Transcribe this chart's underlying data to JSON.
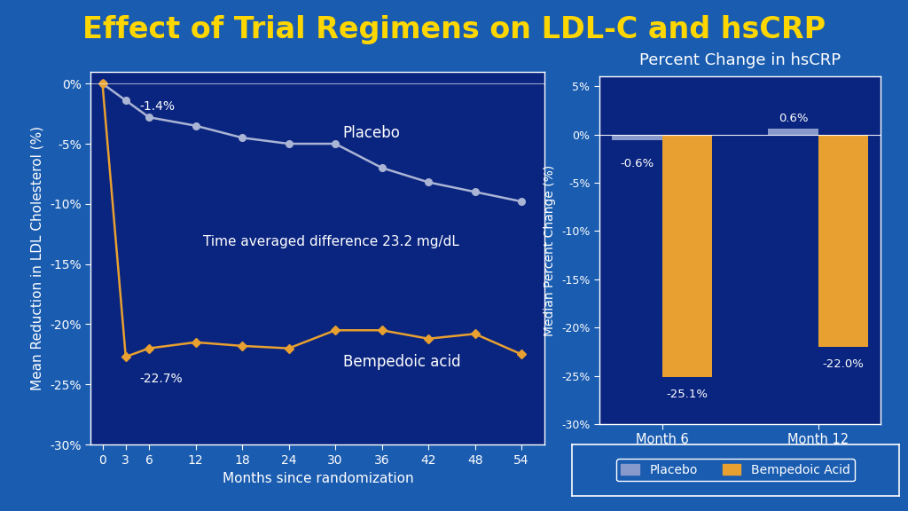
{
  "title": "Effect of Trial Regimens on LDL-C and hsCRP",
  "title_color": "#FFD700",
  "figure_bg": "#1a5cb0",
  "plot_bg_color": "#0a2580",
  "line_x": [
    0,
    3,
    6,
    12,
    18,
    24,
    30,
    36,
    42,
    48,
    54
  ],
  "placebo_y": [
    0,
    -1.4,
    -2.8,
    -3.5,
    -4.5,
    -5.0,
    -5.0,
    -7.0,
    -8.2,
    -9.0,
    -9.8
  ],
  "bempedoic_y": [
    0,
    -22.7,
    -22.0,
    -21.5,
    -21.8,
    -22.0,
    -20.5,
    -20.5,
    -21.2,
    -20.8,
    -22.5
  ],
  "placebo_color": "#aab4d4",
  "bempedoic_color": "#E8A030",
  "line_xlabel": "Months since randomization",
  "line_ylabel": "Mean Reduction in LDL Cholesterol (%)",
  "line_ylim": [
    -30,
    1
  ],
  "line_yticks": [
    0,
    -5,
    -10,
    -15,
    -20,
    -25,
    -30
  ],
  "line_ytick_labels": [
    "0%",
    "-5%",
    "-10%",
    "-15%",
    "-20%",
    "-25%",
    "-30%"
  ],
  "line_xticks": [
    0,
    3,
    6,
    12,
    18,
    24,
    30,
    36,
    42,
    48,
    54
  ],
  "time_avg_text": "Time averaged difference 23.2 mg/dL",
  "placebo_label": "Placebo",
  "bempedoic_label": "Bempedoic acid",
  "placebo_annot": "-1.4%",
  "bempedoic_annot": "-22.7%",
  "bar_title": "Percent Change in hsCRP",
  "bar_ylabel": "Median Percent Change (%)",
  "bar_categories": [
    "Month 6",
    "Month 12"
  ],
  "bar_placebo": [
    -0.6,
    0.6
  ],
  "bar_bempedoic": [
    -25.1,
    -22.0
  ],
  "bar_placebo_color": "#8899cc",
  "bar_bempedoic_color": "#E8A030",
  "bar_ylim": [
    -30,
    6
  ],
  "bar_yticks": [
    5,
    0,
    -5,
    -10,
    -15,
    -20,
    -25,
    -30
  ],
  "bar_ytick_labels": [
    "5%",
    "0%",
    "-5%",
    "-10%",
    "-15%",
    "-20%",
    "-25%",
    "-30%"
  ],
  "legend_placebo": "Placebo",
  "legend_bempedoic": "Bempedoic Acid",
  "tick_color": "white",
  "label_color": "white",
  "text_color": "white",
  "spine_color": "white"
}
